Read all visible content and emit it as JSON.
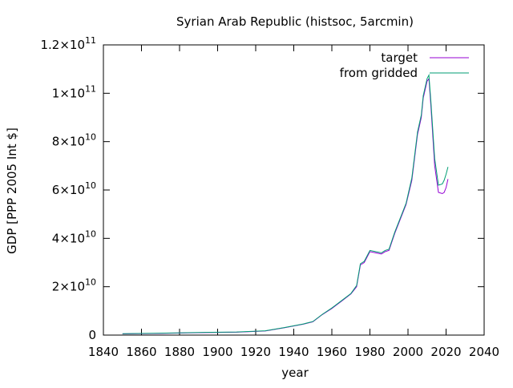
{
  "chart_data": {
    "type": "line",
    "title": "Syrian Arab Republic (histsoc, 5arcmin)",
    "xlabel": "year",
    "ylabel": "GDP [PPP 2005 Int $]",
    "xlim": [
      1840,
      2040
    ],
    "ylim": [
      0,
      120000000000.0
    ],
    "xticks": [
      1840,
      1860,
      1880,
      1900,
      1920,
      1940,
      1960,
      1980,
      2000,
      2020,
      2040
    ],
    "xtick_labels": [
      "1840",
      "1860",
      "1880",
      "1900",
      "1920",
      "1940",
      "1960",
      "1980",
      "2000",
      "2020",
      "2040"
    ],
    "yticks": [
      {
        "value": 0,
        "mantissa": "0",
        "exponent": ""
      },
      {
        "value": 20000000000.0,
        "mantissa": "2×10",
        "exponent": "10"
      },
      {
        "value": 40000000000.0,
        "mantissa": "4×10",
        "exponent": "10"
      },
      {
        "value": 60000000000.0,
        "mantissa": "6×10",
        "exponent": "10"
      },
      {
        "value": 80000000000.0,
        "mantissa": "8×10",
        "exponent": "10"
      },
      {
        "value": 100000000000.0,
        "mantissa": "1×10",
        "exponent": "11"
      },
      {
        "value": 120000000000.0,
        "mantissa": "1.2×10",
        "exponent": "11"
      }
    ],
    "grid": false,
    "legend_position": "top-right",
    "series": [
      {
        "name": "target",
        "color": "#9400d3",
        "x": [
          1850,
          1870,
          1890,
          1910,
          1925,
          1935,
          1945,
          1950,
          1955,
          1960,
          1965,
          1970,
          1973,
          1975,
          1977,
          1980,
          1983,
          1986,
          1988,
          1990,
          1993,
          1996,
          1999,
          2002,
          2005,
          2007,
          2008,
          2010,
          2011,
          2012,
          2014,
          2016,
          2018,
          2019,
          2020,
          2021
        ],
        "y": [
          500000000.0,
          700000000.0,
          1000000000.0,
          1200000000.0,
          1700000000.0,
          3000000000.0,
          4500000000.0,
          5500000000.0,
          8500000000.0,
          11000000000.0,
          14000000000.0,
          17000000000.0,
          20000000000.0,
          29000000000.0,
          30000000000.0,
          34500000000.0,
          34000000000.0,
          33500000000.0,
          34500000000.0,
          35000000000.0,
          42000000000.0,
          48000000000.0,
          54000000000.0,
          64000000000.0,
          83000000000.0,
          90000000000.0,
          98000000000.0,
          105000000000.0,
          106000000000.0,
          95000000000.0,
          70000000000.0,
          59000000000.0,
          58500000000.0,
          59000000000.0,
          61000000000.0,
          64500000000.0
        ]
      },
      {
        "name": "from gridded",
        "color": "#009e73",
        "x": [
          1850,
          1870,
          1890,
          1910,
          1925,
          1935,
          1945,
          1950,
          1955,
          1960,
          1965,
          1970,
          1973,
          1975,
          1977,
          1980,
          1983,
          1986,
          1988,
          1990,
          1993,
          1996,
          1999,
          2002,
          2005,
          2007,
          2008,
          2010,
          2011,
          2012,
          2014,
          2016,
          2018,
          2019,
          2020,
          2021
        ],
        "y": [
          600000000.0,
          800000000.0,
          1100000000.0,
          1300000000.0,
          1800000000.0,
          3100000000.0,
          4600000000.0,
          5600000000.0,
          8600000000.0,
          11200000000.0,
          14200000000.0,
          17200000000.0,
          20500000000.0,
          29500000000.0,
          30500000000.0,
          35000000000.0,
          34500000000.0,
          34000000000.0,
          35000000000.0,
          35500000000.0,
          42500000000.0,
          48500000000.0,
          54500000000.0,
          65000000000.0,
          84000000000.0,
          91000000000.0,
          99000000000.0,
          106000000000.0,
          107500000000.0,
          97000000000.0,
          73000000000.0,
          62000000000.0,
          62500000000.0,
          64000000000.0,
          66500000000.0,
          69500000000.0
        ]
      }
    ]
  }
}
